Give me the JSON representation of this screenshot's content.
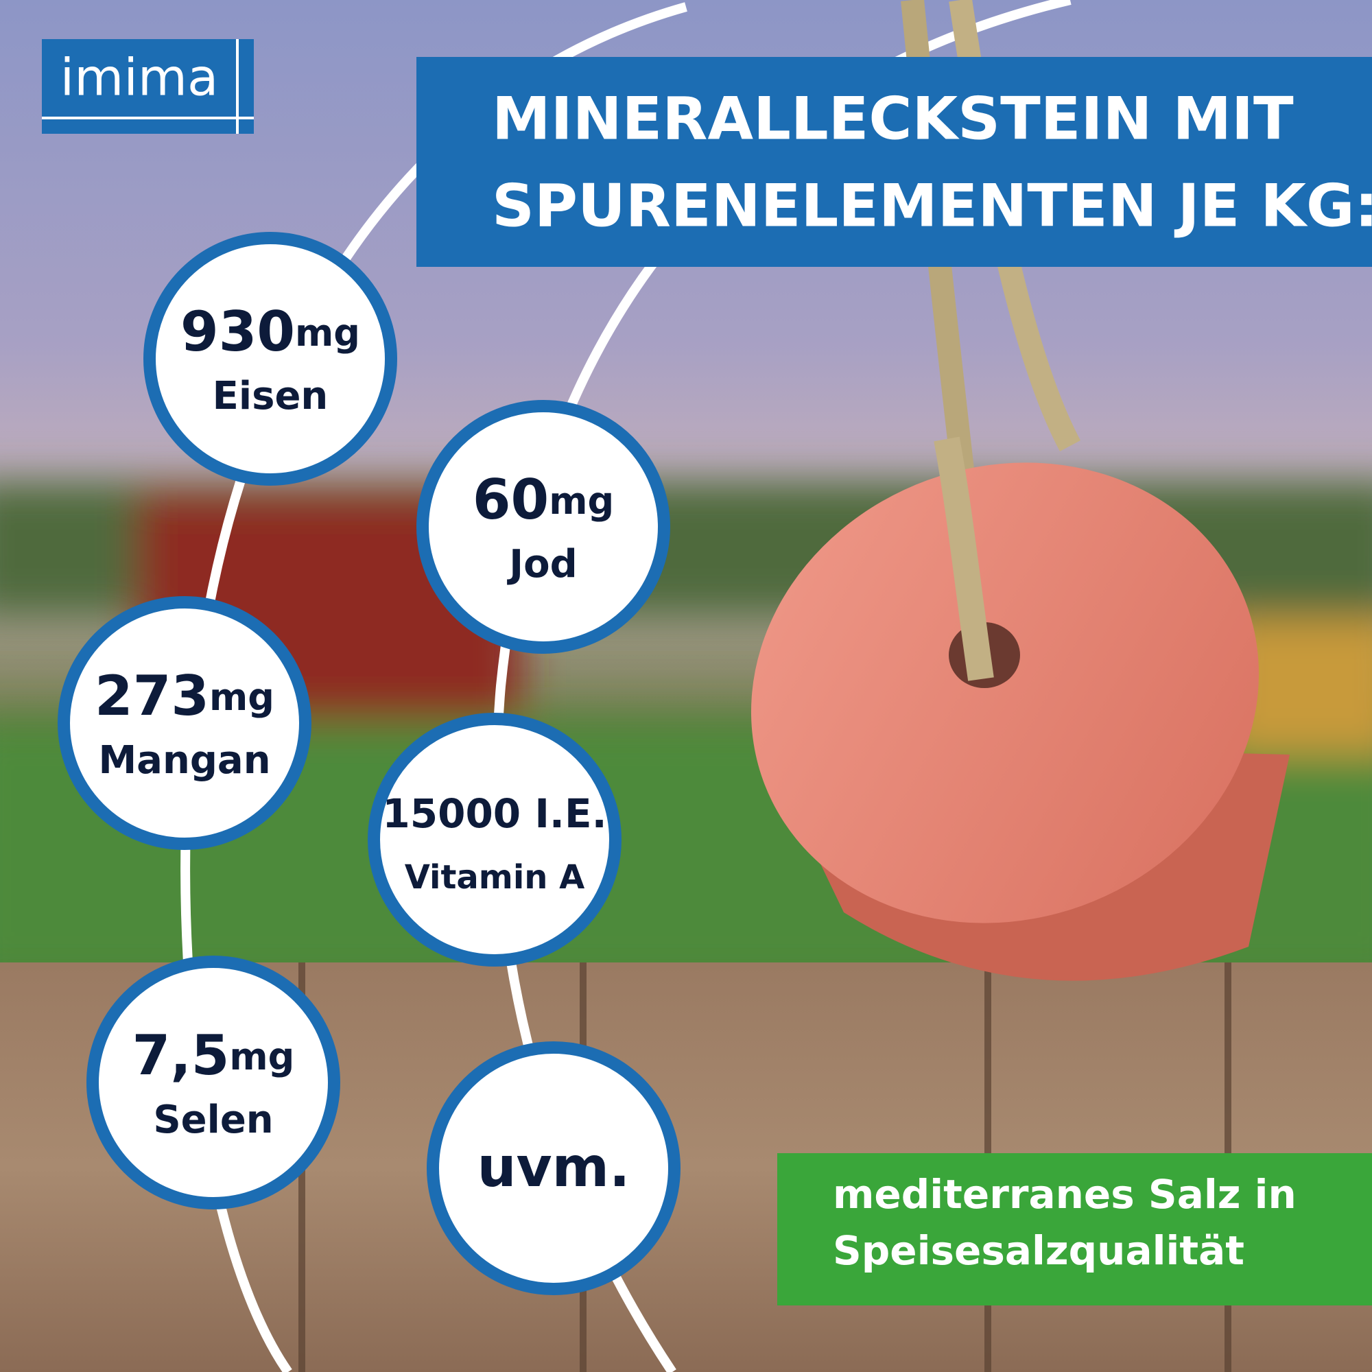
{
  "logo": "imima",
  "title": {
    "lines": [
      "MINERALLECKSTEIN MIT",
      "SPURENELEMENTEN JE KG:"
    ]
  },
  "badges": [
    {
      "value": "930",
      "unit": "mg",
      "label": "Eisen"
    },
    {
      "value": "60",
      "unit": "mg",
      "label": "Jod"
    },
    {
      "value": "273",
      "unit": "mg",
      "label": "Mangan"
    },
    {
      "value": "15000 I.E.",
      "label": "Vitamin A"
    },
    {
      "value": "7,5",
      "unit": "mg",
      "label": "Selen"
    },
    {
      "value": "uvm."
    }
  ],
  "note": {
    "lines": [
      "mediterranes Salz in",
      "Speisesalzqualität"
    ]
  }
}
